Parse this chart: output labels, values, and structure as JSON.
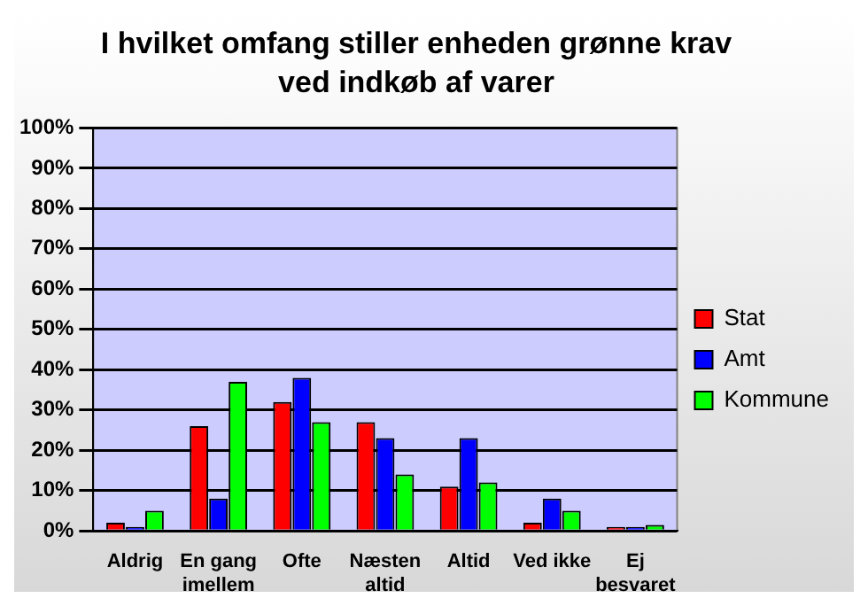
{
  "chart_data": {
    "type": "bar",
    "title": "I hvilket omfang stiller enheden grønne krav ved indkøb af varer",
    "categories": [
      "Aldrig",
      "En gang imellem",
      "Ofte",
      "Næsten altid",
      "Altid",
      "Ved ikke",
      "Ej besvaret"
    ],
    "series": [
      {
        "name": "Stat",
        "color": "#ff0000",
        "values": [
          2,
          26,
          32,
          27,
          11,
          2,
          1
        ]
      },
      {
        "name": "Amt",
        "color": "#0000ff",
        "values": [
          1,
          8,
          38,
          23,
          23,
          8,
          1
        ]
      },
      {
        "name": "Kommune",
        "color": "#00ff00",
        "values": [
          5,
          37,
          27,
          14,
          12,
          5,
          1.5
        ]
      }
    ],
    "ylim": [
      0,
      100
    ],
    "yticks": [
      {
        "value": 0,
        "label": "0%"
      },
      {
        "value": 10,
        "label": "10%"
      },
      {
        "value": 20,
        "label": "20%"
      },
      {
        "value": 30,
        "label": "30%"
      },
      {
        "value": 40,
        "label": "40%"
      },
      {
        "value": 50,
        "label": "50%"
      },
      {
        "value": 60,
        "label": "60%"
      },
      {
        "value": 70,
        "label": "70%"
      },
      {
        "value": 80,
        "label": "80%"
      },
      {
        "value": 90,
        "label": "90%"
      },
      {
        "value": 100,
        "label": "100%"
      }
    ],
    "grid": "y",
    "legend": "right"
  }
}
